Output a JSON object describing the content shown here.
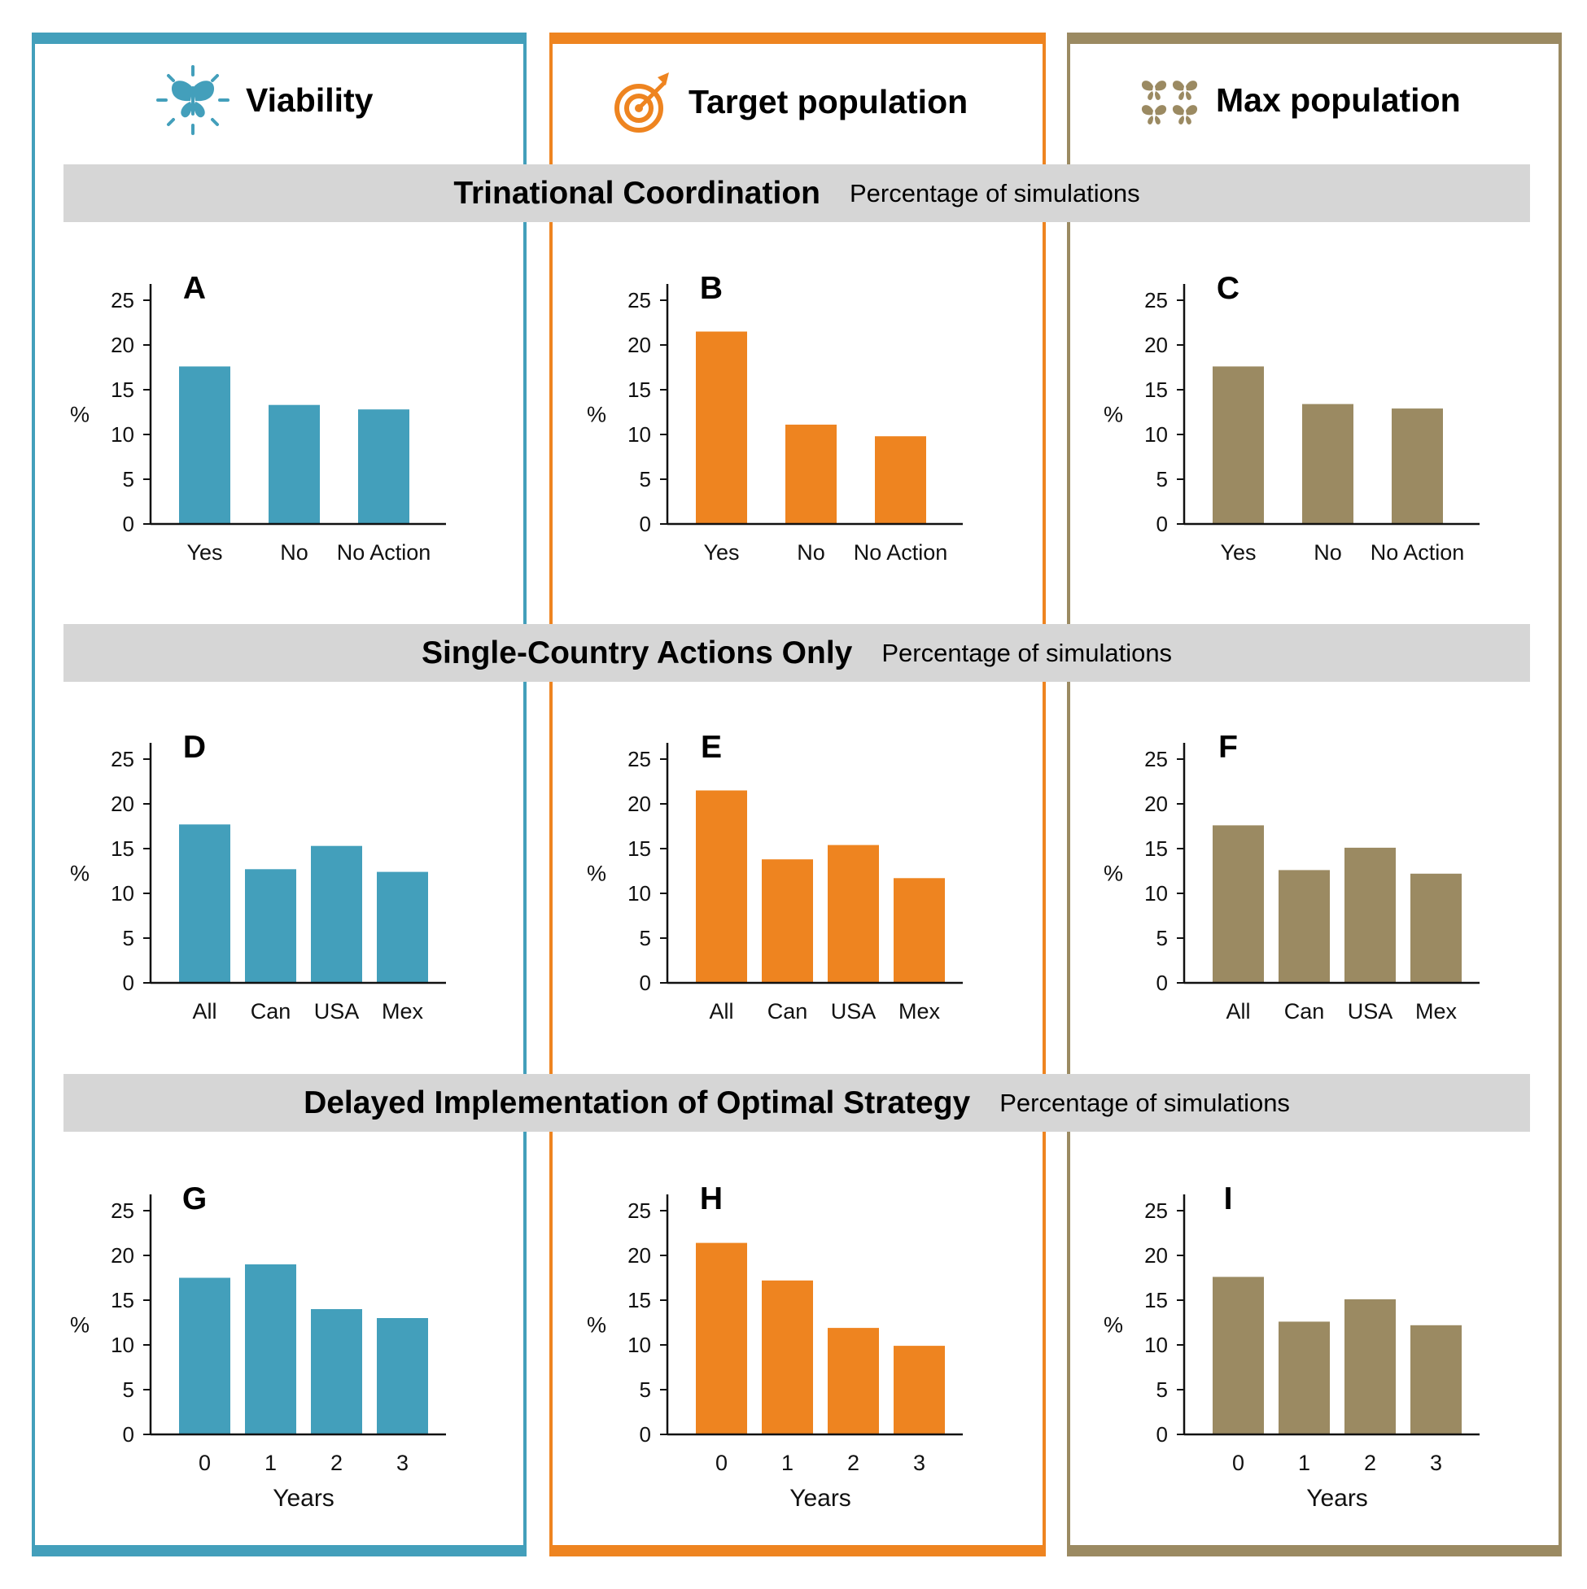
{
  "columns": [
    {
      "title": "Viability",
      "icon": "butterfly-icon",
      "color": "#439fbb"
    },
    {
      "title": "Target population",
      "icon": "target-icon",
      "color": "#ee8420"
    },
    {
      "title": "Max population",
      "icon": "butterflies-icon",
      "color": "#9b8a62"
    }
  ],
  "bands": [
    {
      "title": "Trinational Coordination",
      "subtitle": "Percentage of simulations"
    },
    {
      "title": "Single-Country Actions Only",
      "subtitle": "Percentage of simulations"
    },
    {
      "title": "Delayed Implementation of Optimal Strategy",
      "subtitle": "Percentage of simulations"
    }
  ],
  "chart_data": [
    {
      "panel": "A",
      "type": "bar",
      "categories": [
        "Yes",
        "No",
        "No Action"
      ],
      "values": [
        17.6,
        13.3,
        12.8
      ],
      "ylabel": "%",
      "xlabel": "",
      "ylim": [
        0,
        25
      ],
      "yticks": [
        0,
        5,
        10,
        15,
        20,
        25
      ],
      "color": "#439fbb"
    },
    {
      "panel": "B",
      "type": "bar",
      "categories": [
        "Yes",
        "No",
        "No Action"
      ],
      "values": [
        21.5,
        11.1,
        9.8
      ],
      "ylabel": "%",
      "xlabel": "",
      "ylim": [
        0,
        25
      ],
      "yticks": [
        0,
        5,
        10,
        15,
        20,
        25
      ],
      "color": "#ee8420"
    },
    {
      "panel": "C",
      "type": "bar",
      "categories": [
        "Yes",
        "No",
        "No Action"
      ],
      "values": [
        17.6,
        13.4,
        12.9
      ],
      "ylabel": "%",
      "xlabel": "",
      "ylim": [
        0,
        25
      ],
      "yticks": [
        0,
        5,
        10,
        15,
        20,
        25
      ],
      "color": "#9b8a62"
    },
    {
      "panel": "D",
      "type": "bar",
      "categories": [
        "All",
        "Can",
        "USA",
        "Mex"
      ],
      "values": [
        17.7,
        12.7,
        15.3,
        12.4
      ],
      "ylabel": "%",
      "xlabel": "",
      "ylim": [
        0,
        25
      ],
      "yticks": [
        0,
        5,
        10,
        15,
        20,
        25
      ],
      "color": "#439fbb"
    },
    {
      "panel": "E",
      "type": "bar",
      "categories": [
        "All",
        "Can",
        "USA",
        "Mex"
      ],
      "values": [
        21.5,
        13.8,
        15.4,
        11.7
      ],
      "ylabel": "%",
      "xlabel": "",
      "ylim": [
        0,
        25
      ],
      "yticks": [
        0,
        5,
        10,
        15,
        20,
        25
      ],
      "color": "#ee8420"
    },
    {
      "panel": "F",
      "type": "bar",
      "categories": [
        "All",
        "Can",
        "USA",
        "Mex"
      ],
      "values": [
        17.6,
        12.6,
        15.1,
        12.2
      ],
      "ylabel": "%",
      "xlabel": "",
      "ylim": [
        0,
        25
      ],
      "yticks": [
        0,
        5,
        10,
        15,
        20,
        25
      ],
      "color": "#9b8a62"
    },
    {
      "panel": "G",
      "type": "bar",
      "categories": [
        "0",
        "1",
        "2",
        "3"
      ],
      "values": [
        17.5,
        19.0,
        14.0,
        13.0
      ],
      "ylabel": "%",
      "xlabel": "Years",
      "ylim": [
        0,
        25
      ],
      "yticks": [
        0,
        5,
        10,
        15,
        20,
        25
      ],
      "color": "#439fbb"
    },
    {
      "panel": "H",
      "type": "bar",
      "categories": [
        "0",
        "1",
        "2",
        "3"
      ],
      "values": [
        21.4,
        17.2,
        11.9,
        9.9
      ],
      "ylabel": "%",
      "xlabel": "Years",
      "ylim": [
        0,
        25
      ],
      "yticks": [
        0,
        5,
        10,
        15,
        20,
        25
      ],
      "color": "#ee8420"
    },
    {
      "panel": "I",
      "type": "bar",
      "categories": [
        "0",
        "1",
        "2",
        "3"
      ],
      "values": [
        17.6,
        12.6,
        15.1,
        12.2
      ],
      "ylabel": "%",
      "xlabel": "Years",
      "ylim": [
        0,
        25
      ],
      "yticks": [
        0,
        5,
        10,
        15,
        20,
        25
      ],
      "color": "#9b8a62"
    }
  ]
}
